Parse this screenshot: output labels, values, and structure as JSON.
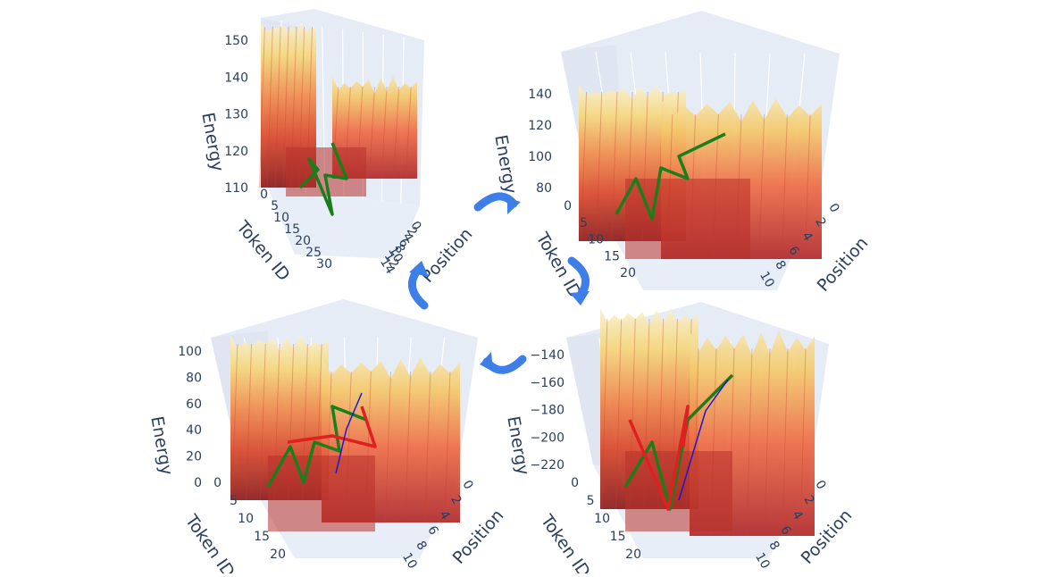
{
  "chart_data": [
    {
      "type": "surface3d",
      "panel": "top-left",
      "zlabel": "Energy",
      "ylabel": "Token ID",
      "xlabel": "Position",
      "z_ticks": [
        "150",
        "140",
        "130",
        "120",
        "110"
      ],
      "token_ticks": [
        "0",
        "5",
        "10",
        "15",
        "20",
        "25",
        "30"
      ],
      "position_ticks": [
        "0",
        "2",
        "4",
        "6",
        "8",
        "10",
        "12",
        "14"
      ],
      "paths": [
        {
          "color": "#1a7f1a",
          "name": ""
        }
      ],
      "colorscale": [
        "#8b1a1a",
        "#d9472b",
        "#f08a4b",
        "#f5d77a",
        "#f8f0d0"
      ]
    },
    {
      "type": "surface3d",
      "panel": "top-right",
      "zlabel": "Energy",
      "ylabel": "Token ID",
      "xlabel": "Position",
      "z_ticks": [
        "140",
        "120",
        "100",
        "80"
      ],
      "token_ticks": [
        "0",
        "5",
        "10",
        "15",
        "20"
      ],
      "position_ticks": [
        "0",
        "2",
        "4",
        "6",
        "8",
        "10"
      ],
      "paths": [
        {
          "color": "#1a7f1a",
          "name": ""
        }
      ],
      "colorscale": [
        "#8b1a1a",
        "#d9472b",
        "#f08a4b",
        "#f5d77a",
        "#f8f0d0"
      ]
    },
    {
      "type": "surface3d",
      "panel": "bottom-left",
      "zlabel": "Energy",
      "ylabel": "Token ID",
      "xlabel": "Position",
      "z_ticks": [
        "100",
        "80",
        "60",
        "40",
        "20",
        "0"
      ],
      "token_ticks": [
        "0",
        "5",
        "10",
        "15",
        "20"
      ],
      "position_ticks": [
        "0",
        "2",
        "4",
        "6",
        "8",
        "10"
      ],
      "paths": [
        {
          "color": "#1a7f1a",
          "name": ""
        },
        {
          "color": "#e02020",
          "name": ""
        },
        {
          "color": "#1a1acc",
          "name": ""
        }
      ],
      "colorscale": [
        "#8b1a1a",
        "#d9472b",
        "#f08a4b",
        "#f5d77a",
        "#f8f0d0"
      ]
    },
    {
      "type": "surface3d",
      "panel": "bottom-right",
      "zlabel": "Energy",
      "ylabel": "Token ID",
      "xlabel": "Position",
      "z_ticks": [
        "−140",
        "−160",
        "−180",
        "−200",
        "−220"
      ],
      "token_ticks": [
        "0",
        "5",
        "10",
        "15",
        "20"
      ],
      "position_ticks": [
        "0",
        "2",
        "4",
        "6",
        "8",
        "10"
      ],
      "paths": [
        {
          "color": "#1a7f1a",
          "name": ""
        },
        {
          "color": "#e02020",
          "name": ""
        },
        {
          "color": "#1a1acc",
          "name": ""
        }
      ],
      "colorscale": [
        "#8b1a1a",
        "#d9472b",
        "#f08a4b",
        "#f5d77a",
        "#f8f0d0"
      ]
    }
  ],
  "colors": {
    "pane": "#e5ecf6",
    "grid": "#ffffff",
    "axis_text": "#2a3f5f",
    "cycle_arrow": "#3d7ee8"
  },
  "cycle_arrows": [
    "arrow-right",
    "arrow-down",
    "arrow-left",
    "arrow-up"
  ]
}
